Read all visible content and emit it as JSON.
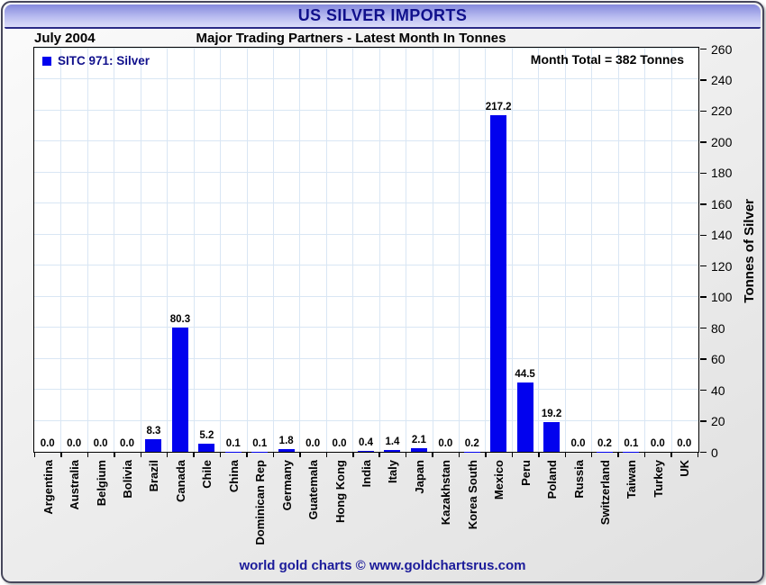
{
  "header": {
    "title": "US SILVER IMPORTS",
    "period": "July 2004",
    "subtitle": "Major Trading Partners - Latest Month In Tonnes"
  },
  "legend": {
    "label": "SITC 971: Silver"
  },
  "annotation": {
    "text": "Month Total = 382 Tonnes"
  },
  "footer": {
    "text": "world gold charts © www.goldchartsrus.com"
  },
  "colors": {
    "bar_blue": "#0202ee",
    "navy_text": "#10108c",
    "grid_blue": "#d9e6f4",
    "frame_border": "#46465a",
    "header_gradient_top": "#8489dd",
    "header_gradient_bottom": "#dcddf9"
  },
  "chart_data": {
    "type": "bar",
    "title": "US SILVER IMPORTS",
    "subtitle": "Major Trading Partners - Latest Month In Tonnes",
    "period": "July 2004",
    "ylabel": "Tonnes of Silver",
    "ylim": [
      0,
      260
    ],
    "ytick_step": 20,
    "grid": true,
    "legend_entries": [
      "SITC 971: Silver"
    ],
    "legend_position": "top-left",
    "annotation": "Month Total = 382 Tonnes",
    "month_total_tonnes": 382,
    "bar_color": "#0202ee",
    "categories": [
      "Argentina",
      "Australia",
      "Belgium",
      "Bolivia",
      "Brazil",
      "Canada",
      "Chile",
      "China",
      "Dominican Rep",
      "Germany",
      "Guatemala",
      "Hong Kong",
      "India",
      "Italy",
      "Japan",
      "Kazakhstan",
      "Korea South",
      "Mexico",
      "Peru",
      "Poland",
      "Russia",
      "Switzerland",
      "Taiwan",
      "Turkey",
      "UK"
    ],
    "values": [
      0.0,
      0.0,
      0.0,
      0.0,
      8.3,
      80.3,
      5.2,
      0.1,
      0.1,
      1.8,
      0.0,
      0.0,
      0.4,
      1.4,
      2.1,
      0.0,
      0.2,
      217.2,
      44.5,
      19.2,
      0.0,
      0.2,
      0.1,
      0.0,
      0.0
    ]
  }
}
